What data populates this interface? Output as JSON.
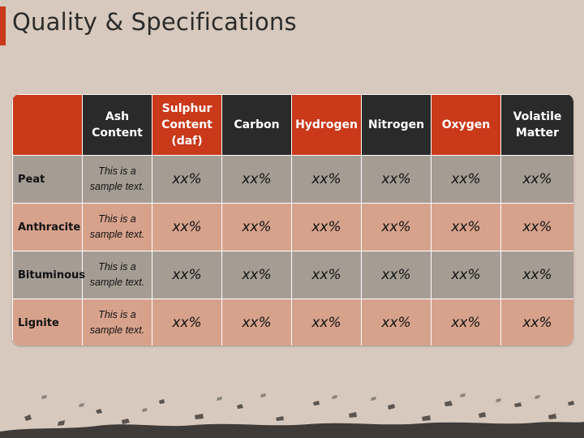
{
  "slide": {
    "title": "Quality & Specifications",
    "colors": {
      "accent": "#c9391a",
      "dark": "#2a2a2a",
      "row_gray": "#a59c94",
      "row_pink": "#d7a28c",
      "background": "#d7c9bd"
    }
  },
  "table": {
    "headers": [
      {
        "label": "",
        "color": "red"
      },
      {
        "label": "Ash Content",
        "color": "dark"
      },
      {
        "label": "Sulphur Content (daf)",
        "color": "red"
      },
      {
        "label": "Carbon",
        "color": "dark"
      },
      {
        "label": "Hydrogen",
        "color": "red"
      },
      {
        "label": "Nitrogen",
        "color": "dark"
      },
      {
        "label": "Oxygen",
        "color": "red"
      },
      {
        "label": "Volatile Matter",
        "color": "dark"
      }
    ],
    "rows": [
      {
        "label": "Peat",
        "sample": "This is a sample text.",
        "values": [
          "xx%",
          "xx%",
          "xx%",
          "xx%",
          "xx%",
          "xx%"
        ]
      },
      {
        "label": "Anthracite",
        "sample": "This is a sample text.",
        "values": [
          "xx%",
          "xx%",
          "xx%",
          "xx%",
          "xx%",
          "xx%"
        ]
      },
      {
        "label": "Bituminous",
        "sample": "This is a sample text.",
        "values": [
          "xx%",
          "xx%",
          "xx%",
          "xx%",
          "xx%",
          "xx%"
        ]
      },
      {
        "label": "Lignite",
        "sample": "This is a sample text.",
        "values": [
          "xx%",
          "xx%",
          "xx%",
          "xx%",
          "xx%",
          "xx%"
        ]
      }
    ]
  }
}
